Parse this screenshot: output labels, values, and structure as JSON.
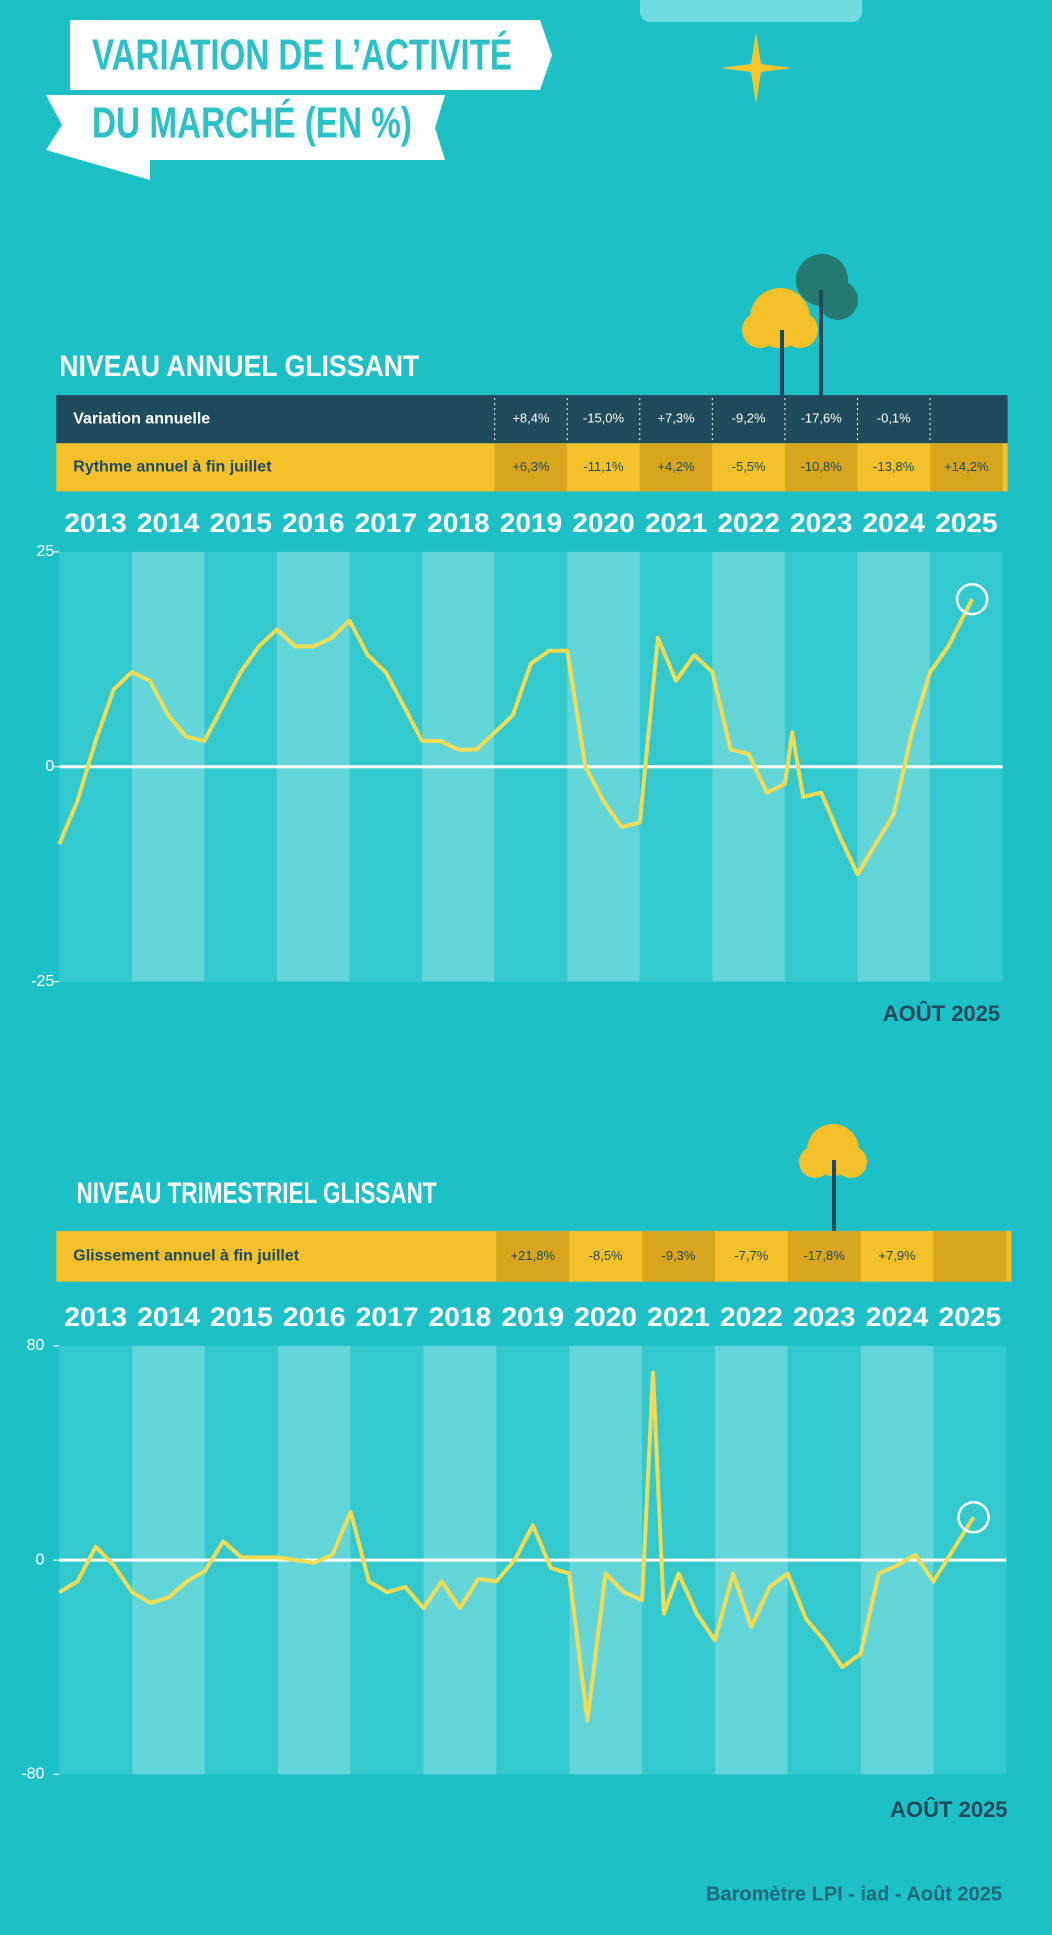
{
  "title": [
    "VARIATION DE L’ACTIVITÉ",
    "DU MARCHÉ (EN %)"
  ],
  "source": "Baromètre LPI - iad - Août  2025",
  "chart_data": [
    {
      "type": "line",
      "title": "NIVEAU ANNUEL GLISSANT",
      "table": {
        "rows": [
          {
            "label": "Variation annuelle",
            "cells": [
              "+8,4%",
              "-15,0%",
              "+7,3%",
              "-9,2%",
              "-17,6%",
              "-0,1%"
            ]
          },
          {
            "label": "Rythme annuel à fin juillet",
            "cells": [
              "+6,3%",
              "-11,1%",
              "+4,2%",
              "-5,5%",
              "-10,8%",
              "-13,8%",
              "+14,2%"
            ]
          }
        ]
      },
      "categories": [
        "2013",
        "2014",
        "2015",
        "2016",
        "2017",
        "2018",
        "2019",
        "2020",
        "2021",
        "2022",
        "2023",
        "2024",
        "2025"
      ],
      "xlim": [
        2013,
        2026
      ],
      "ylim": [
        -25,
        25
      ],
      "yticks": [
        -25,
        0,
        25
      ],
      "annotation": "AOÛT 2025",
      "series": [
        {
          "color": "#f3dc55",
          "x": [
            2013,
            2013.25,
            2013.5,
            2013.75,
            2014,
            2014.25,
            2014.5,
            2014.75,
            2015,
            2015.25,
            2015.5,
            2015.75,
            2016,
            2016.25,
            2016.5,
            2016.75,
            2017,
            2017.25,
            2017.5,
            2017.75,
            2018,
            2018.25,
            2018.5,
            2018.75,
            2019,
            2019.25,
            2019.5,
            2019.75,
            2020,
            2020.25,
            2020.5,
            2020.75,
            2021,
            2021.25,
            2021.5,
            2021.75,
            2022,
            2022.25,
            2022.5,
            2022.75,
            2023,
            2023.1,
            2023.25,
            2023.5,
            2023.75,
            2024,
            2024.25,
            2024.5,
            2024.75,
            2025,
            2025.25,
            2025.58
          ],
          "values": [
            -9,
            -4,
            3,
            9,
            11,
            10,
            6,
            3.5,
            3,
            7,
            11,
            14,
            16,
            14,
            14,
            15,
            17,
            13,
            11,
            7,
            3,
            3,
            2,
            2,
            4,
            6,
            12,
            13.5,
            13.5,
            0,
            -4,
            -7,
            -6.5,
            15,
            10,
            13,
            11,
            2,
            1.5,
            -3,
            -2,
            4,
            -3.5,
            -3,
            -8,
            -12.5,
            -9,
            -5.5,
            4,
            11,
            14,
            19.5
          ]
        }
      ]
    },
    {
      "type": "line",
      "title": "NIVEAU TRIMESTRIEL GLISSANT",
      "table": {
        "rows": [
          {
            "label": "Glissement annuel à fin juillet",
            "cells": [
              "+21,8%",
              "-8,5%",
              "-9,3%",
              "-7,7%",
              "-17,8%",
              "+7,9%"
            ]
          }
        ]
      },
      "categories": [
        "2013",
        "2014",
        "2015",
        "2016",
        "2017",
        "2018",
        "2019",
        "2020",
        "2021",
        "2022",
        "2023",
        "2024",
        "2025"
      ],
      "xlim": [
        2013,
        2026
      ],
      "ylim": [
        -80,
        80
      ],
      "yticks": [
        -80,
        0,
        80
      ],
      "annotation": "AOÛT 2025",
      "series": [
        {
          "color": "#f3dc55",
          "x": [
            2013,
            2013.25,
            2013.5,
            2013.75,
            2014,
            2014.25,
            2014.5,
            2014.75,
            2015,
            2015.25,
            2015.5,
            2015.75,
            2016,
            2016.25,
            2016.5,
            2016.75,
            2017,
            2017.25,
            2017.5,
            2017.75,
            2018,
            2018.25,
            2018.5,
            2018.75,
            2019,
            2019.25,
            2019.5,
            2019.75,
            2020,
            2020.25,
            2020.5,
            2020.75,
            2021,
            2021.15,
            2021.3,
            2021.5,
            2021.75,
            2022,
            2022.25,
            2022.5,
            2022.75,
            2023,
            2023.25,
            2023.5,
            2023.75,
            2024,
            2024.25,
            2024.5,
            2024.75,
            2025,
            2025.25,
            2025.55
          ],
          "values": [
            -12,
            -8,
            5,
            -2,
            -12,
            -16,
            -14,
            -8,
            -4,
            7,
            1,
            1,
            1,
            0,
            -1,
            2,
            18,
            -8,
            -12,
            -10,
            -18,
            -8,
            -18,
            -7,
            -8,
            0,
            13,
            -3,
            -5,
            -60,
            -5,
            -12,
            -15,
            70,
            -20,
            -5,
            -20,
            -30,
            -5,
            -25,
            -10,
            -5,
            -22,
            -30,
            -40,
            -35,
            -5,
            -2,
            2,
            -8,
            3,
            16
          ]
        }
      ]
    }
  ]
}
